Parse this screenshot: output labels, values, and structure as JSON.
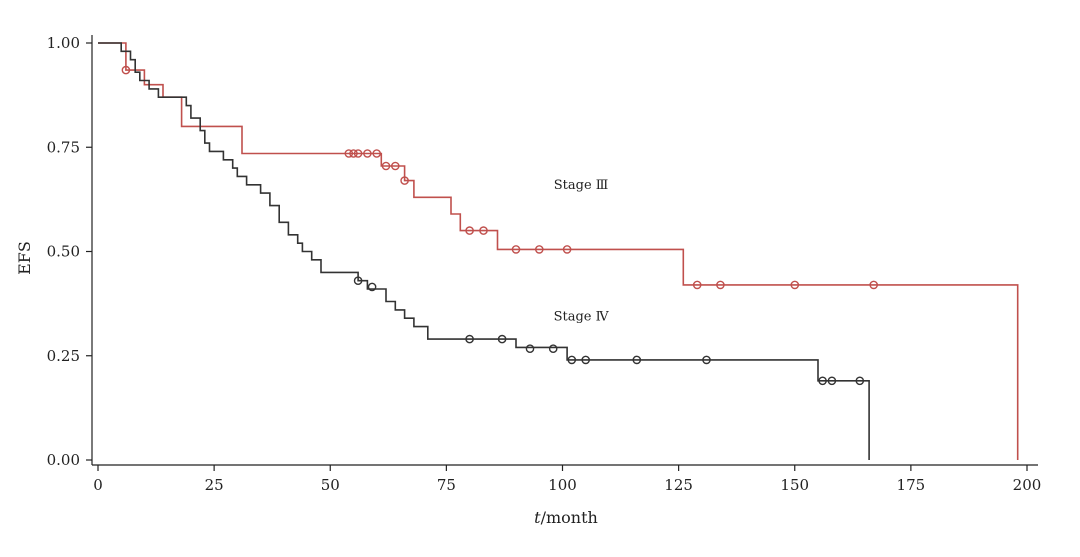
{
  "chart_data": {
    "type": "line",
    "subtype": "kaplan-meier",
    "title": "",
    "xlabel_italic": "t",
    "xlabel_rest": "/month",
    "ylabel": "EFS",
    "xlim": [
      0,
      200
    ],
    "ylim": [
      0,
      1
    ],
    "x_ticks": [
      0,
      25,
      50,
      75,
      100,
      125,
      150,
      175,
      200
    ],
    "x_tick_labels": [
      "0",
      "25",
      "50",
      "75",
      "100",
      "125",
      "150",
      "175",
      "200"
    ],
    "y_ticks": [
      0,
      0.25,
      0.5,
      0.75,
      1.0
    ],
    "y_tick_labels": [
      "0.00",
      "0.25",
      "0.50",
      "0.75",
      "1.00"
    ],
    "grid": false,
    "series": [
      {
        "name": "Stage Ⅲ",
        "label": "Stage Ⅲ",
        "label_at": [
          104,
          0.65
        ],
        "color": "#c0504d",
        "step_points": [
          [
            0,
            1.0
          ],
          [
            6,
            1.0
          ],
          [
            6,
            0.935
          ],
          [
            10,
            0.935
          ],
          [
            10,
            0.9
          ],
          [
            14,
            0.9
          ],
          [
            14,
            0.87
          ],
          [
            18,
            0.87
          ],
          [
            18,
            0.8
          ],
          [
            31,
            0.8
          ],
          [
            31,
            0.735
          ],
          [
            61,
            0.735
          ],
          [
            61,
            0.705
          ],
          [
            66,
            0.705
          ],
          [
            66,
            0.67
          ],
          [
            68,
            0.67
          ],
          [
            68,
            0.63
          ],
          [
            76,
            0.63
          ],
          [
            76,
            0.59
          ],
          [
            78,
            0.59
          ],
          [
            78,
            0.55
          ],
          [
            86,
            0.55
          ],
          [
            86,
            0.505
          ],
          [
            126,
            0.505
          ],
          [
            126,
            0.42
          ],
          [
            198,
            0.42
          ],
          [
            198,
            0.0
          ]
        ],
        "censor_points": [
          [
            6,
            0.935
          ],
          [
            54,
            0.735
          ],
          [
            55,
            0.735
          ],
          [
            56,
            0.735
          ],
          [
            58,
            0.735
          ],
          [
            60,
            0.735
          ],
          [
            62,
            0.705
          ],
          [
            64,
            0.705
          ],
          [
            66,
            0.67
          ],
          [
            80,
            0.55
          ],
          [
            83,
            0.55
          ],
          [
            90,
            0.505
          ],
          [
            95,
            0.505
          ],
          [
            101,
            0.505
          ],
          [
            129,
            0.42
          ],
          [
            134,
            0.42
          ],
          [
            150,
            0.42
          ],
          [
            167,
            0.42
          ]
        ]
      },
      {
        "name": "Stage Ⅳ",
        "label": "Stage Ⅳ",
        "label_at": [
          104,
          0.335
        ],
        "color": "#333333",
        "step_points": [
          [
            0,
            1.0
          ],
          [
            5,
            1.0
          ],
          [
            5,
            0.98
          ],
          [
            7,
            0.98
          ],
          [
            7,
            0.96
          ],
          [
            8,
            0.96
          ],
          [
            8,
            0.93
          ],
          [
            9,
            0.93
          ],
          [
            9,
            0.91
          ],
          [
            11,
            0.91
          ],
          [
            11,
            0.89
          ],
          [
            13,
            0.89
          ],
          [
            13,
            0.87
          ],
          [
            19,
            0.87
          ],
          [
            19,
            0.85
          ],
          [
            20,
            0.85
          ],
          [
            20,
            0.82
          ],
          [
            22,
            0.82
          ],
          [
            22,
            0.79
          ],
          [
            23,
            0.79
          ],
          [
            23,
            0.76
          ],
          [
            24,
            0.76
          ],
          [
            24,
            0.74
          ],
          [
            27,
            0.74
          ],
          [
            27,
            0.72
          ],
          [
            29,
            0.72
          ],
          [
            29,
            0.7
          ],
          [
            30,
            0.7
          ],
          [
            30,
            0.68
          ],
          [
            32,
            0.68
          ],
          [
            32,
            0.66
          ],
          [
            35,
            0.66
          ],
          [
            35,
            0.64
          ],
          [
            37,
            0.64
          ],
          [
            37,
            0.61
          ],
          [
            39,
            0.61
          ],
          [
            39,
            0.57
          ],
          [
            41,
            0.57
          ],
          [
            41,
            0.54
          ],
          [
            43,
            0.54
          ],
          [
            43,
            0.52
          ],
          [
            44,
            0.52
          ],
          [
            44,
            0.5
          ],
          [
            46,
            0.5
          ],
          [
            46,
            0.48
          ],
          [
            48,
            0.48
          ],
          [
            48,
            0.45
          ],
          [
            56,
            0.45
          ],
          [
            56,
            0.43
          ],
          [
            58,
            0.43
          ],
          [
            58,
            0.41
          ],
          [
            62,
            0.41
          ],
          [
            62,
            0.38
          ],
          [
            64,
            0.38
          ],
          [
            64,
            0.36
          ],
          [
            66,
            0.36
          ],
          [
            66,
            0.34
          ],
          [
            68,
            0.34
          ],
          [
            68,
            0.32
          ],
          [
            71,
            0.32
          ],
          [
            71,
            0.29
          ],
          [
            90,
            0.29
          ],
          [
            90,
            0.27
          ],
          [
            101,
            0.27
          ],
          [
            101,
            0.24
          ],
          [
            155,
            0.24
          ],
          [
            155,
            0.19
          ],
          [
            166,
            0.19
          ],
          [
            166,
            0.0
          ]
        ],
        "censor_points": [
          [
            56,
            0.43
          ],
          [
            59,
            0.415
          ],
          [
            80,
            0.29
          ],
          [
            87,
            0.29
          ],
          [
            93,
            0.267
          ],
          [
            98,
            0.267
          ],
          [
            102,
            0.24
          ],
          [
            105,
            0.24
          ],
          [
            116,
            0.24
          ],
          [
            131,
            0.24
          ],
          [
            156,
            0.19
          ],
          [
            158,
            0.19
          ],
          [
            164,
            0.19
          ]
        ]
      }
    ]
  }
}
